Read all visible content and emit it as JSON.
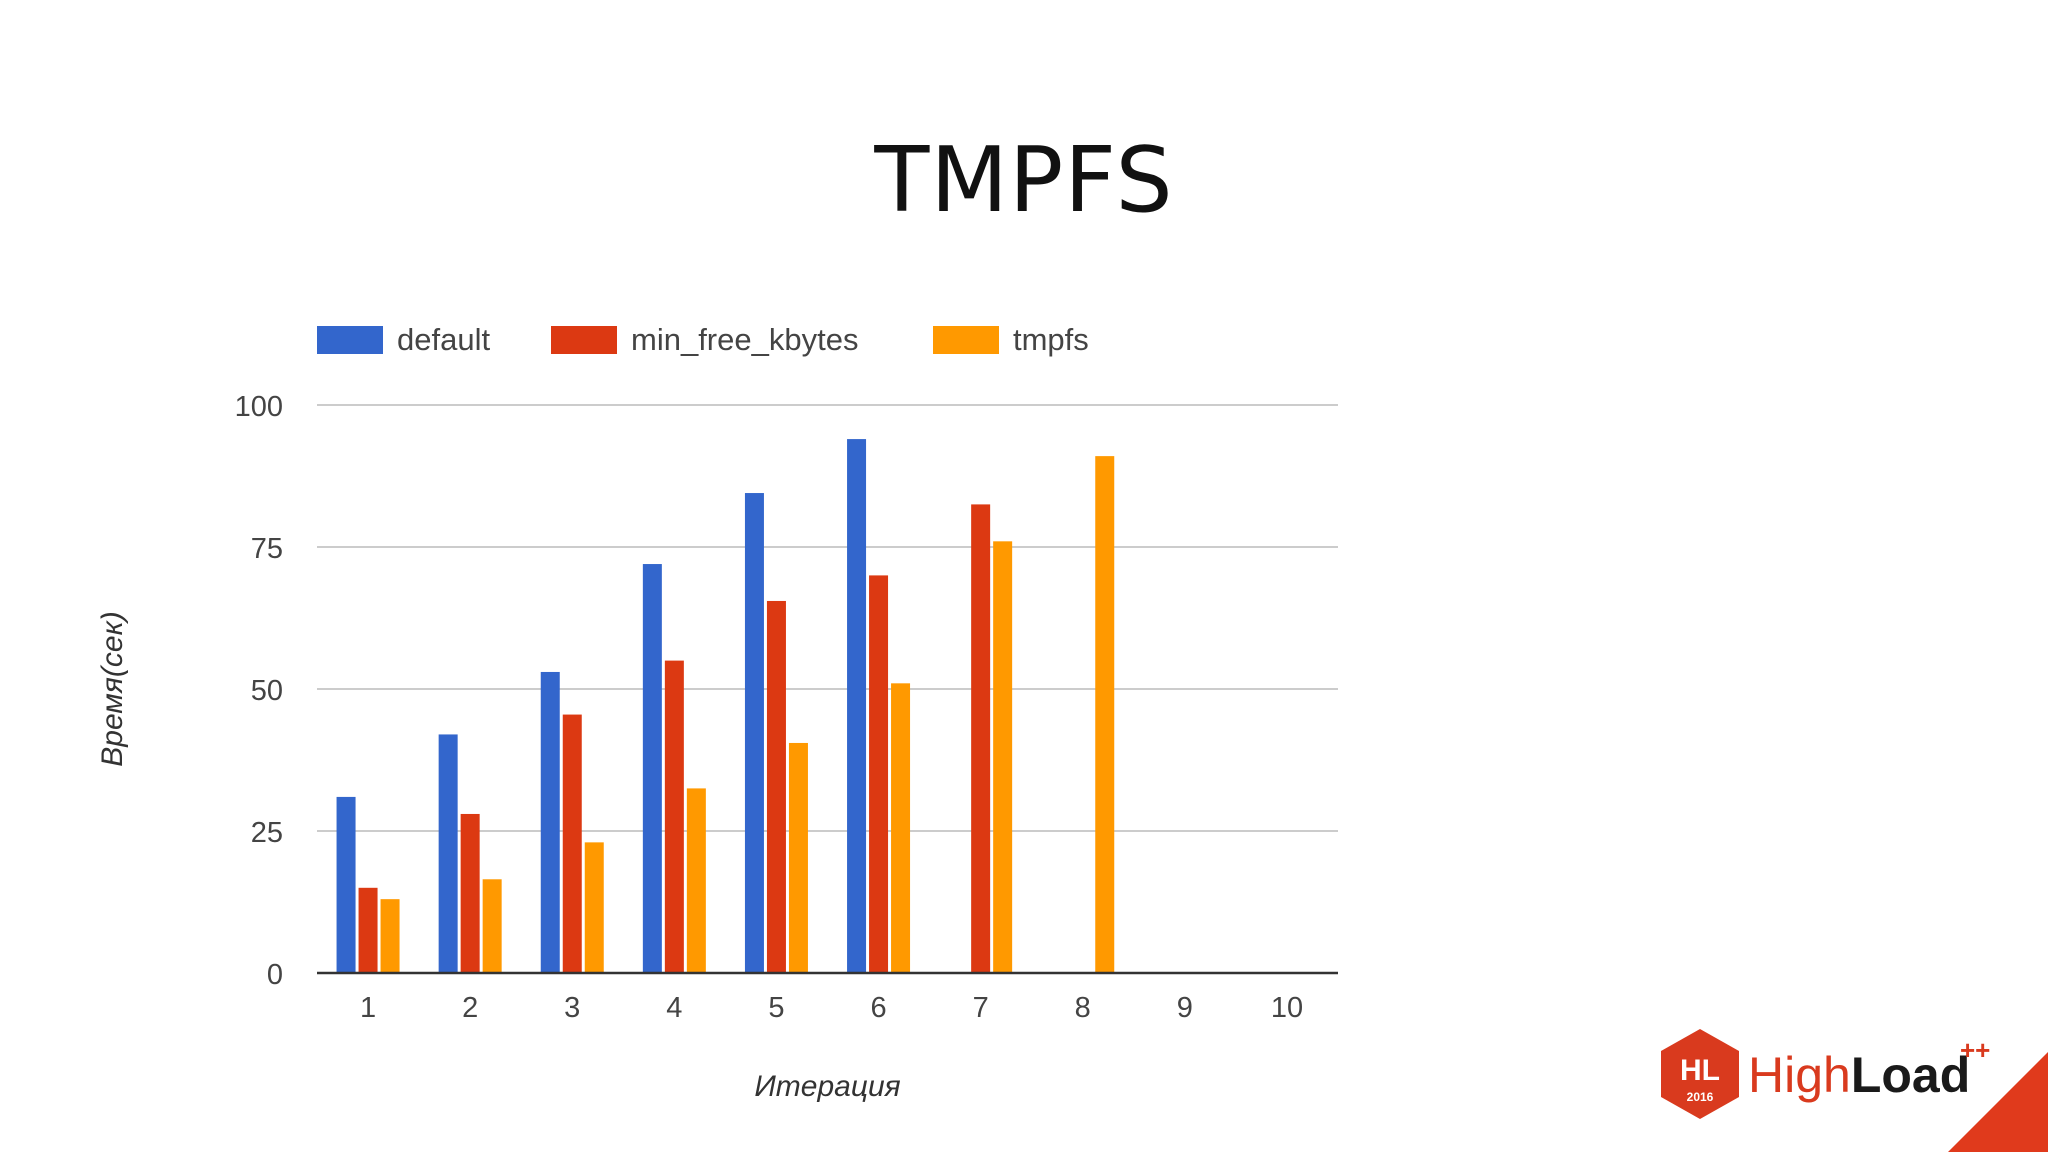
{
  "slide": {
    "title": "TMPFS"
  },
  "chart_data": {
    "type": "bar",
    "categories": [
      "1",
      "2",
      "3",
      "4",
      "5",
      "6",
      "7",
      "8",
      "9",
      "10"
    ],
    "series": [
      {
        "name": "default",
        "color": "#3366cc",
        "values": [
          31,
          42,
          53,
          72,
          84.5,
          94,
          null,
          null,
          null,
          null
        ]
      },
      {
        "name": "min_free_kbytes",
        "color": "#dc3912",
        "values": [
          15,
          28,
          45.5,
          55,
          65.5,
          70,
          82.5,
          null,
          null,
          null
        ]
      },
      {
        "name": "tmpfs",
        "color": "#ff9900",
        "values": [
          13,
          16.5,
          23,
          32.5,
          40.5,
          51,
          76,
          91,
          null,
          null
        ]
      }
    ],
    "xlabel": "Итерация",
    "ylabel": "Время(сек)",
    "ylim": [
      0,
      100
    ],
    "yticks": [
      "0",
      "25",
      "50",
      "75",
      "100"
    ],
    "grid": true,
    "legend_position": "top"
  },
  "logo": {
    "badge": "HL",
    "year": "2016",
    "name_light": "High",
    "name_bold": "Load",
    "superscript": "++"
  }
}
